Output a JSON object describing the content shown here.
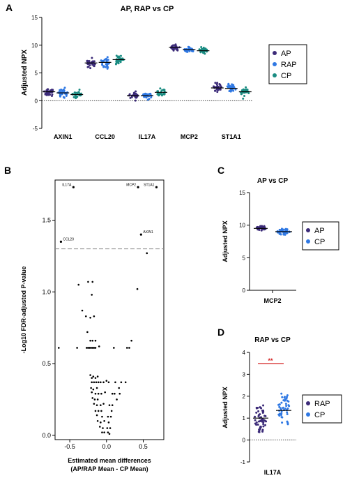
{
  "colors": {
    "AP": "#3b2a78",
    "RAP": "#2f78e3",
    "CP": "#1a8c82",
    "sig": "#d32020",
    "cp_blue": "#2f78e3",
    "axis": "#000000",
    "dash": "#888888"
  },
  "panels": {
    "A": "A",
    "B": "B",
    "C": "C",
    "D": "D"
  },
  "chart_data": [
    {
      "type": "scatter",
      "title": "AP, RAP vs CP",
      "ylabel": "Adjusted NPX",
      "ylim": [
        -5,
        15
      ],
      "yticks": [
        "-5",
        "0",
        "5",
        "10",
        "15"
      ],
      "categories": [
        "AXIN1",
        "CCL20",
        "IL17A",
        "MCP2",
        "ST1A1"
      ],
      "legend": [
        "AP",
        "RAP",
        "CP"
      ],
      "legend_position": "right",
      "series": [
        {
          "name": "AP",
          "medians": [
            1.6,
            6.8,
            0.9,
            9.6,
            2.3
          ]
        },
        {
          "name": "RAP",
          "medians": [
            1.4,
            6.9,
            0.9,
            9.2,
            2.2
          ]
        },
        {
          "name": "CP",
          "medians": [
            1.1,
            7.4,
            1.5,
            9.0,
            1.6
          ]
        }
      ]
    },
    {
      "type": "scatter",
      "xlabel_line1": "Estimated mean differences",
      "xlabel_line2": "(AP/RAP Mean - CP Mean)",
      "ylabel": "-Log10 FDR-adjusted P-value",
      "xlim": [
        -0.7,
        0.78
      ],
      "ylim": [
        -0.03,
        1.78
      ],
      "xticks": [
        "-0.5",
        "0.0",
        "0.5"
      ],
      "yticks": [
        "0.0",
        "0.5",
        "1.0",
        "1.5"
      ],
      "threshold": 1.3,
      "labeled_points": [
        {
          "label": "IL17A",
          "x": -0.45,
          "y": 1.73
        },
        {
          "label": "MCP2",
          "x": 0.43,
          "y": 1.73
        },
        {
          "label": "ST1A1",
          "x": 0.68,
          "y": 1.73
        },
        {
          "label": "AXIN1",
          "x": 0.47,
          "y": 1.4
        },
        {
          "label": "CCL20",
          "x": -0.62,
          "y": 1.35
        }
      ],
      "points": [
        [
          0.55,
          1.27
        ],
        [
          -0.38,
          1.05
        ],
        [
          -0.25,
          1.07
        ],
        [
          -0.19,
          1.07
        ],
        [
          0.42,
          1.02
        ],
        [
          -0.2,
          0.98
        ],
        [
          -0.33,
          0.87
        ],
        [
          -0.28,
          0.83
        ],
        [
          -0.22,
          0.82
        ],
        [
          -0.17,
          0.83
        ],
        [
          -0.26,
          0.72
        ],
        [
          -0.22,
          0.66
        ],
        [
          -0.19,
          0.66
        ],
        [
          -0.15,
          0.66
        ],
        [
          0.34,
          0.66
        ],
        [
          -0.1,
          0.62
        ],
        [
          -0.65,
          0.61
        ],
        [
          -0.4,
          0.61
        ],
        [
          -0.27,
          0.61
        ],
        [
          -0.25,
          0.61
        ],
        [
          -0.23,
          0.61
        ],
        [
          -0.21,
          0.61
        ],
        [
          -0.19,
          0.61
        ],
        [
          -0.17,
          0.61
        ],
        [
          -0.15,
          0.61
        ],
        [
          0.1,
          0.61
        ],
        [
          0.28,
          0.61
        ],
        [
          0.31,
          0.61
        ],
        [
          -0.22,
          0.42
        ],
        [
          -0.18,
          0.41
        ],
        [
          -0.12,
          0.41
        ],
        [
          -0.2,
          0.4
        ],
        [
          -0.15,
          0.4
        ],
        [
          -0.2,
          0.37
        ],
        [
          -0.17,
          0.37
        ],
        [
          -0.14,
          0.37
        ],
        [
          -0.11,
          0.37
        ],
        [
          -0.08,
          0.37
        ],
        [
          -0.04,
          0.37
        ],
        [
          0.0,
          0.38
        ],
        [
          0.03,
          0.37
        ],
        [
          0.12,
          0.37
        ],
        [
          0.2,
          0.37
        ],
        [
          0.26,
          0.37
        ],
        [
          -0.21,
          0.33
        ],
        [
          -0.18,
          0.32
        ],
        [
          -0.13,
          0.33
        ],
        [
          0.17,
          0.33
        ],
        [
          -0.2,
          0.3
        ],
        [
          -0.15,
          0.29
        ],
        [
          -0.11,
          0.29
        ],
        [
          -0.07,
          0.29
        ],
        [
          -0.02,
          0.3
        ],
        [
          0.08,
          0.29
        ],
        [
          0.11,
          0.29
        ],
        [
          0.18,
          0.29
        ],
        [
          -0.19,
          0.26
        ],
        [
          -0.16,
          0.25
        ],
        [
          -0.12,
          0.25
        ],
        [
          0.14,
          0.25
        ],
        [
          -0.17,
          0.22
        ],
        [
          -0.13,
          0.21
        ],
        [
          -0.08,
          0.21
        ],
        [
          -0.04,
          0.22
        ],
        [
          0.04,
          0.21
        ],
        [
          0.08,
          0.21
        ],
        [
          -0.15,
          0.17
        ],
        [
          -0.11,
          0.17
        ],
        [
          -0.07,
          0.17
        ],
        [
          0.07,
          0.17
        ],
        [
          -0.13,
          0.14
        ],
        [
          -0.06,
          0.13
        ],
        [
          0.02,
          0.13
        ],
        [
          0.06,
          0.13
        ],
        [
          -0.12,
          0.1
        ],
        [
          -0.08,
          0.09
        ],
        [
          -0.03,
          0.1
        ],
        [
          0.03,
          0.09
        ],
        [
          -0.09,
          0.06
        ],
        [
          -0.05,
          0.05
        ],
        [
          0.01,
          0.05
        ],
        [
          0.05,
          0.05
        ],
        [
          -0.06,
          0.02
        ],
        [
          -0.03,
          0.02
        ],
        [
          0.02,
          0.02
        ],
        [
          0.04,
          0.01
        ]
      ]
    },
    {
      "type": "scatter",
      "title": "AP vs CP",
      "ylabel": "Adjusted NPX",
      "ylim": [
        0,
        15
      ],
      "yticks": [
        "0",
        "5",
        "10",
        "15"
      ],
      "categories": [
        "MCP2"
      ],
      "legend": [
        "AP",
        "CP"
      ],
      "legend_position": "right",
      "medians": [
        9.5,
        9.0
      ]
    },
    {
      "type": "scatter",
      "title": "RAP vs CP",
      "ylabel": "Adjusted NPX",
      "ylim": [
        -1,
        4
      ],
      "yticks": [
        "-1",
        "0",
        "1",
        "2",
        "3",
        "4"
      ],
      "categories": [
        "IL17A"
      ],
      "legend": [
        "RAP",
        "CP"
      ],
      "legend_position": "right",
      "medians": [
        1.0,
        1.35
      ],
      "significance": "**"
    }
  ]
}
